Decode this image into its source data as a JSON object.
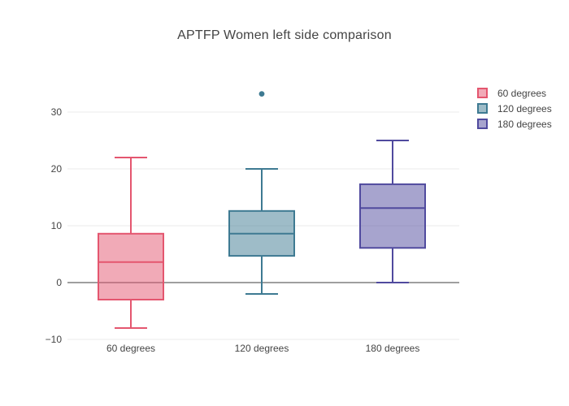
{
  "chart_data": {
    "type": "box",
    "title": "APTFP Women left side comparison",
    "categories": [
      "60 degrees",
      "120 degrees",
      "180 degrees"
    ],
    "series": [
      {
        "name": "60 degrees",
        "line_color": "#E4566F",
        "fill_color": "rgba(228,86,111,0.5)",
        "lowerfence": -8,
        "q1": -3,
        "median": 3.6,
        "q3": 8.6,
        "upperfence": 22,
        "outliers": []
      },
      {
        "name": "120 degrees",
        "line_color": "#3E7A92",
        "fill_color": "rgba(62,122,146,0.5)",
        "lowerfence": -2,
        "q1": 4.7,
        "median": 8.6,
        "q3": 12.6,
        "upperfence": 20,
        "outliers": [
          33.2
        ]
      },
      {
        "name": "180 degrees",
        "line_color": "#504A9E",
        "fill_color": "rgba(80,74,158,0.5)",
        "lowerfence": 0,
        "q1": 6.1,
        "median": 13.1,
        "q3": 17.3,
        "upperfence": 25,
        "outliers": []
      }
    ],
    "yticks": [
      30,
      20,
      10,
      0,
      -10
    ],
    "ylim": [
      -10.5,
      37
    ],
    "grid": true,
    "zeroline": true,
    "legend_position": "top-right",
    "xlabel": "",
    "ylabel": ""
  },
  "colors": {
    "text": "#444444",
    "grid": "#EBEBEB",
    "zeroline": "#666666",
    "background": "#FFFFFF"
  }
}
